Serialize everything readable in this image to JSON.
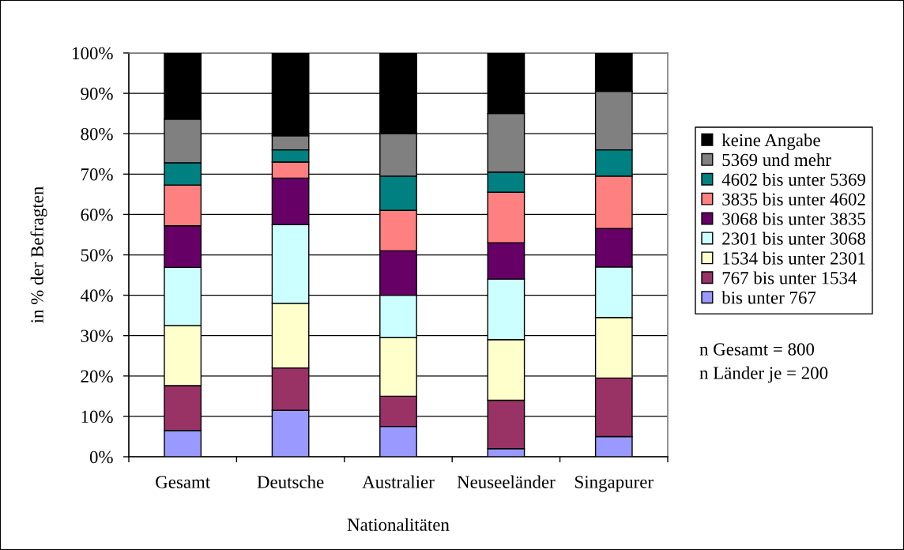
{
  "chart_data": {
    "type": "bar",
    "stacked": true,
    "xlabel": "Nationalitäten",
    "ylabel": "in % der Befragten",
    "categories": [
      "Gesamt",
      "Deutsche",
      "Australier",
      "Neuseeländer",
      "Singapurer"
    ],
    "series": [
      {
        "name": "bis unter 767",
        "color": "#9999ff",
        "values": [
          6.5,
          11.5,
          7.5,
          2,
          5
        ]
      },
      {
        "name": "767 bis unter 1534",
        "color": "#993366",
        "values": [
          11.1,
          10.5,
          7.5,
          12,
          14.5
        ]
      },
      {
        "name": "1534 bis unter 2301",
        "color": "#ffffcc",
        "values": [
          14.9,
          16,
          14.5,
          15,
          15
        ]
      },
      {
        "name": "2301 bis unter 3068",
        "color": "#ccffff",
        "values": [
          14.4,
          19.5,
          10.5,
          15,
          12.5
        ]
      },
      {
        "name": "3068 bis unter 3835",
        "color": "#660066",
        "values": [
          10.3,
          11.5,
          11,
          9,
          9.5
        ]
      },
      {
        "name": "3835 bis unter 4602",
        "color": "#ff8080",
        "values": [
          10.1,
          4,
          10,
          12.5,
          13
        ]
      },
      {
        "name": "4602 bis unter 5369",
        "color": "#008080",
        "values": [
          5.5,
          3,
          8.5,
          5,
          6.5
        ]
      },
      {
        "name": "5369 und mehr",
        "color": "#808080",
        "values": [
          10.8,
          3.5,
          10.5,
          14.5,
          14.5
        ]
      },
      {
        "name": "keine Angabe",
        "color": "#000000",
        "values": [
          16.4,
          20.5,
          20,
          15,
          9.5
        ]
      }
    ],
    "ylim": [
      0,
      100
    ],
    "yticks": [
      {
        "value": 0,
        "label": "0%"
      },
      {
        "value": 10,
        "label": "10%"
      },
      {
        "value": 20,
        "label": "20%"
      },
      {
        "value": 30,
        "label": "30%"
      },
      {
        "value": 40,
        "label": "40%"
      },
      {
        "value": 50,
        "label": "50%"
      },
      {
        "value": 60,
        "label": "60%"
      },
      {
        "value": 70,
        "label": "70%"
      },
      {
        "value": 80,
        "label": "80%"
      },
      {
        "value": 90,
        "label": "90%"
      },
      {
        "value": 100,
        "label": "100%"
      }
    ],
    "grid": "y",
    "legend": "right",
    "annotations": [
      "n Gesamt = 800",
      "n Länder je = 200"
    ]
  }
}
